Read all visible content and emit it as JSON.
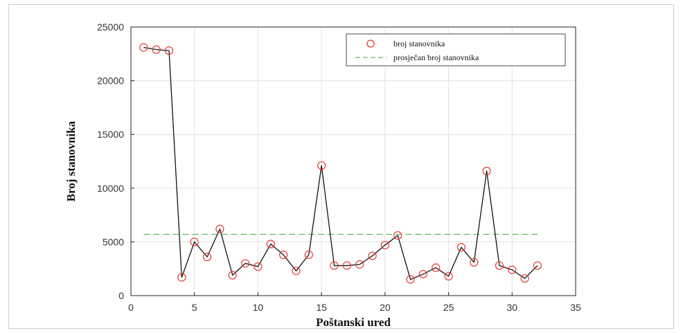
{
  "chart_data": {
    "type": "line",
    "xlabel": "Poštanski ured",
    "ylabel": "Broj stanovnika",
    "xlim": [
      0,
      35
    ],
    "ylim": [
      0,
      25000
    ],
    "xticks": [
      0,
      5,
      10,
      15,
      20,
      25,
      30,
      35
    ],
    "yticks": [
      0,
      5000,
      10000,
      15000,
      20000,
      25000
    ],
    "grid": true,
    "legend_position": "top-right",
    "series": [
      {
        "name": "broj stanovnika",
        "style": "line-with-circle-markers",
        "line_color": "#111111",
        "marker_color": "#e53935",
        "x": [
          1,
          2,
          3,
          4,
          5,
          6,
          7,
          8,
          9,
          10,
          11,
          12,
          13,
          14,
          15,
          16,
          17,
          18,
          19,
          20,
          21,
          22,
          23,
          24,
          25,
          26,
          27,
          28,
          29,
          30,
          31,
          32
        ],
        "y": [
          23100,
          22900,
          22800,
          1700,
          5000,
          3600,
          6200,
          1900,
          3000,
          2700,
          4800,
          3800,
          2300,
          3800,
          12100,
          2800,
          2800,
          2900,
          3700,
          4700,
          5600,
          1500,
          2000,
          2600,
          1800,
          4500,
          3100,
          11600,
          2800,
          2400,
          1600,
          2800
        ]
      },
      {
        "name": "prosječan broj stanovnika",
        "style": "dashed",
        "color": "#5cb85c",
        "x": [
          1,
          32
        ],
        "y": [
          5700,
          5700
        ]
      }
    ]
  }
}
